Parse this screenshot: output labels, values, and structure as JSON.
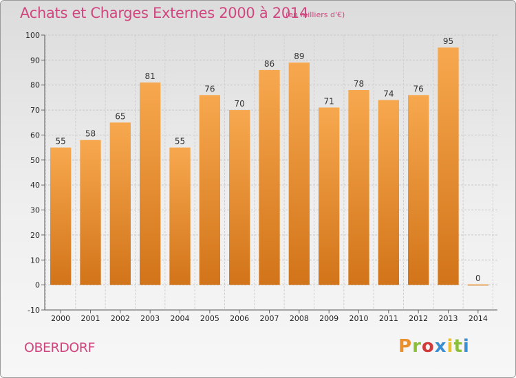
{
  "header": {
    "title": "Achats et Charges Externes 2000 à 2014",
    "subtitle": "(en milliers d'€)"
  },
  "footer": {
    "commune": "OBERDORF",
    "brand": "Proxiti",
    "brand_colors": [
      "#e8912e",
      "#8bbf3a",
      "#d23a3a",
      "#3a8fd2",
      "#e8c12e",
      "#8bbf3a",
      "#3a8fd2"
    ]
  },
  "chart_data": {
    "type": "bar",
    "title": "Achats et Charges Externes 2000 à 2014",
    "subtitle": "(en milliers d'€)",
    "xlabel": "",
    "ylabel": "",
    "categories": [
      "2000",
      "2001",
      "2002",
      "2003",
      "2004",
      "2005",
      "2006",
      "2007",
      "2008",
      "2009",
      "2010",
      "2011",
      "2012",
      "2013",
      "2014"
    ],
    "values": [
      55,
      58,
      65,
      81,
      55,
      76,
      70,
      86,
      89,
      71,
      78,
      74,
      76,
      95,
      0
    ],
    "data_labels": [
      "55",
      "58",
      "65",
      "81",
      "55",
      "76",
      "70",
      "86",
      "89",
      "71",
      "78",
      "74",
      "76",
      "95",
      "0"
    ],
    "yticks": [
      -10,
      0,
      10,
      20,
      30,
      40,
      50,
      60,
      70,
      80,
      90,
      100
    ],
    "ylim": [
      -10,
      100
    ],
    "grid": true,
    "legend": "none",
    "bar_color_light": "#f7a84e",
    "bar_color_dark": "#d27419"
  }
}
